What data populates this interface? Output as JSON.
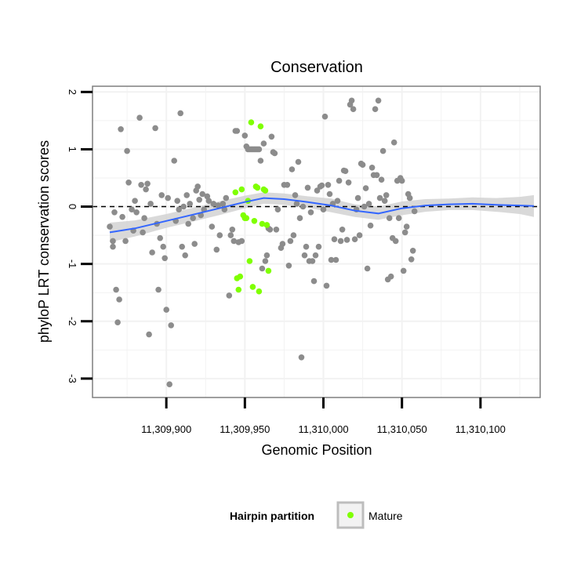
{
  "chart_data": {
    "type": "scatter",
    "title": "Conservation",
    "xlabel": "Genomic Position",
    "ylabel": "phyloP LRT conservation scores",
    "xlim": [
      11309853,
      11310138
    ],
    "ylim": [
      -3.33,
      2.1
    ],
    "x_ticks": [
      11309900,
      11309950,
      11310000,
      11310050,
      11310100
    ],
    "x_tick_labels": [
      "11,309,900",
      "11,309,950",
      "11,310,000",
      "11,310,050",
      "11,310,100"
    ],
    "y_ticks": [
      2,
      1,
      0,
      -1,
      -2,
      -3
    ],
    "y_tick_labels": [
      "2",
      "1",
      "0",
      "-1",
      "-2",
      "-3"
    ],
    "reference_line": {
      "y": 0,
      "style": "dashed"
    },
    "grid": true,
    "colors": {
      "default_point": "#8c8c8c",
      "mature_point": "#7fff00",
      "smooth_line": "#3366ff",
      "confidence_band": "#d2d2d2",
      "grid": "#f2f2f2",
      "panel_border": "#7f7f7f"
    },
    "legend": {
      "title": "Hairpin partition",
      "position": "bottom",
      "entries": [
        {
          "label": "Mature",
          "color": "#7fff00"
        }
      ]
    },
    "series": [
      {
        "name": "",
        "color": "#8c8c8c",
        "points": [
          [
            11309864,
            -0.35
          ],
          [
            11309866,
            -0.7
          ],
          [
            11309866,
            -0.6
          ],
          [
            11309867,
            -0.1
          ],
          [
            11309868,
            -1.45
          ],
          [
            11309869,
            -2.02
          ],
          [
            11309870,
            -1.62
          ],
          [
            11309871,
            1.35
          ],
          [
            11309872,
            -0.18
          ],
          [
            11309874,
            -0.6
          ],
          [
            11309875,
            0.97
          ],
          [
            11309876,
            0.42
          ],
          [
            11309878,
            -0.05
          ],
          [
            11309879,
            -0.42
          ],
          [
            11309880,
            0.1
          ],
          [
            11309881,
            -0.1
          ],
          [
            11309883,
            1.55
          ],
          [
            11309884,
            0.38
          ],
          [
            11309885,
            -0.45
          ],
          [
            11309886,
            -0.2
          ],
          [
            11309887,
            0.3
          ],
          [
            11309888,
            0.4
          ],
          [
            11309889,
            -2.23
          ],
          [
            11309890,
            0.05
          ],
          [
            11309891,
            -0.8
          ],
          [
            11309893,
            1.37
          ],
          [
            11309894,
            -0.3
          ],
          [
            11309895,
            -1.45
          ],
          [
            11309896,
            -0.55
          ],
          [
            11309897,
            0.2
          ],
          [
            11309898,
            -0.7
          ],
          [
            11309899,
            -0.9
          ],
          [
            11309900,
            -1.8
          ],
          [
            11309901,
            0.15
          ],
          [
            11309902,
            -3.1
          ],
          [
            11309903,
            -2.07
          ],
          [
            11309905,
            0.8
          ],
          [
            11309906,
            -0.25
          ],
          [
            11309907,
            0.1
          ],
          [
            11309908,
            -0.05
          ],
          [
            11309909,
            1.63
          ],
          [
            11309910,
            -0.7
          ],
          [
            11309911,
            0.0
          ],
          [
            11309912,
            -0.85
          ],
          [
            11309913,
            0.2
          ],
          [
            11309914,
            -0.3
          ],
          [
            11309915,
            0.05
          ],
          [
            11309917,
            -0.2
          ],
          [
            11309918,
            -0.65
          ],
          [
            11309919,
            0.28
          ],
          [
            11309920,
            0.35
          ],
          [
            11309921,
            0.12
          ],
          [
            11309922,
            -0.15
          ],
          [
            11309923,
            0.22
          ],
          [
            11309924,
            -0.05
          ],
          [
            11309926,
            0.18
          ],
          [
            11309927,
            0.1
          ],
          [
            11309929,
            -0.35
          ],
          [
            11309930,
            0.05
          ],
          [
            11309932,
            -0.75
          ],
          [
            11309933,
            0.02
          ],
          [
            11309934,
            -0.5
          ],
          [
            11309936,
            0.05
          ],
          [
            11309937,
            -0.05
          ],
          [
            11309938,
            0.15
          ],
          [
            11309940,
            -1.55
          ],
          [
            11309941,
            -0.5
          ],
          [
            11309942,
            -0.4
          ],
          [
            11309943,
            -0.6
          ],
          [
            11309944,
            1.32
          ],
          [
            11309945,
            1.32
          ],
          [
            11309946,
            -0.62
          ],
          [
            11309948,
            -0.6
          ],
          [
            11309950,
            1.24
          ],
          [
            11309951,
            1.05
          ],
          [
            11309952,
            1.0
          ],
          [
            11309953,
            1.0
          ],
          [
            11309954,
            1.0
          ],
          [
            11309955,
            1.0
          ],
          [
            11309956,
            1.0
          ],
          [
            11309957,
            1.0
          ],
          [
            11309958,
            1.0
          ],
          [
            11309959,
            1.0
          ],
          [
            11309960,
            0.8
          ],
          [
            11309961,
            -1.08
          ],
          [
            11309962,
            1.1
          ],
          [
            11309963,
            -0.95
          ],
          [
            11309964,
            -0.85
          ],
          [
            11309965,
            -0.38
          ],
          [
            11309966,
            -0.4
          ],
          [
            11309967,
            1.22
          ],
          [
            11309968,
            0.95
          ],
          [
            11309969,
            0.93
          ],
          [
            11309970,
            -0.4
          ],
          [
            11309971,
            -0.05
          ],
          [
            11309973,
            -0.72
          ],
          [
            11309974,
            -0.65
          ],
          [
            11309975,
            0.38
          ],
          [
            11309977,
            0.38
          ],
          [
            11309978,
            -1.03
          ],
          [
            11309979,
            -0.6
          ],
          [
            11309980,
            0.65
          ],
          [
            11309981,
            -0.5
          ],
          [
            11309982,
            0.2
          ],
          [
            11309983,
            0.05
          ],
          [
            11309984,
            0.78
          ],
          [
            11309985,
            -0.2
          ],
          [
            11309986,
            -2.63
          ],
          [
            11309987,
            0.0
          ],
          [
            11309988,
            -0.85
          ],
          [
            11309989,
            -0.7
          ],
          [
            11309990,
            0.33
          ],
          [
            11309991,
            -0.95
          ],
          [
            11309992,
            -0.1
          ],
          [
            11309993,
            -0.95
          ],
          [
            11309994,
            -1.3
          ],
          [
            11309995,
            -0.85
          ],
          [
            11309996,
            0.28
          ],
          [
            11309997,
            -0.7
          ],
          [
            11309998,
            0.35
          ],
          [
            11309999,
            0.37
          ],
          [
            11310000,
            -0.05
          ],
          [
            11310001,
            1.57
          ],
          [
            11310002,
            -1.38
          ],
          [
            11310003,
            0.38
          ],
          [
            11310004,
            0.22
          ],
          [
            11310005,
            -0.93
          ],
          [
            11310006,
            0.05
          ],
          [
            11310007,
            -0.57
          ],
          [
            11310008,
            -0.93
          ],
          [
            11310009,
            0.1
          ],
          [
            11310010,
            0.45
          ],
          [
            11310011,
            -0.6
          ],
          [
            11310012,
            -0.4
          ],
          [
            11310013,
            0.63
          ],
          [
            11310014,
            0.62
          ],
          [
            11310015,
            -0.58
          ],
          [
            11310016,
            0.42
          ],
          [
            11310017,
            1.78
          ],
          [
            11310018,
            1.85
          ],
          [
            11310019,
            1.7
          ],
          [
            11310020,
            -0.57
          ],
          [
            11310021,
            -0.05
          ],
          [
            11310022,
            0.15
          ],
          [
            11310023,
            -0.5
          ],
          [
            11310024,
            0.75
          ],
          [
            11310025,
            0.73
          ],
          [
            11310026,
            0.0
          ],
          [
            11310027,
            0.32
          ],
          [
            11310028,
            -1.08
          ],
          [
            11310029,
            0.05
          ],
          [
            11310030,
            -0.33
          ],
          [
            11310031,
            0.68
          ],
          [
            11310032,
            0.55
          ],
          [
            11310033,
            1.7
          ],
          [
            11310034,
            0.55
          ],
          [
            11310035,
            1.85
          ],
          [
            11310036,
            0.15
          ],
          [
            11310037,
            0.47
          ],
          [
            11310038,
            0.97
          ],
          [
            11310039,
            0.1
          ],
          [
            11310040,
            0.2
          ],
          [
            11310041,
            -1.27
          ],
          [
            11310042,
            -0.2
          ],
          [
            11310043,
            -1.22
          ],
          [
            11310044,
            -0.55
          ],
          [
            11310045,
            1.12
          ],
          [
            11310046,
            -0.6
          ],
          [
            11310047,
            0.45
          ],
          [
            11310048,
            -0.2
          ],
          [
            11310049,
            0.5
          ],
          [
            11310050,
            0.45
          ],
          [
            11310051,
            -1.12
          ],
          [
            11310052,
            -0.45
          ],
          [
            11310053,
            -0.35
          ],
          [
            11310054,
            0.22
          ],
          [
            11310055,
            0.15
          ],
          [
            11310056,
            -0.92
          ],
          [
            11310057,
            -0.77
          ],
          [
            11310058,
            -0.08
          ]
        ]
      },
      {
        "name": "Mature",
        "color": "#7fff00",
        "points": [
          [
            11309944,
            0.25
          ],
          [
            11309945,
            -1.25
          ],
          [
            11309946,
            -1.45
          ],
          [
            11309947,
            -1.22
          ],
          [
            11309948,
            0.3
          ],
          [
            11309949,
            -0.15
          ],
          [
            11309950,
            -0.2
          ],
          [
            11309951,
            -0.2
          ],
          [
            11309952,
            0.1
          ],
          [
            11309953,
            -0.95
          ],
          [
            11309954,
            1.47
          ],
          [
            11309955,
            -1.4
          ],
          [
            11309956,
            -0.25
          ],
          [
            11309957,
            0.35
          ],
          [
            11309958,
            0.33
          ],
          [
            11309959,
            -1.48
          ],
          [
            11309960,
            1.4
          ],
          [
            11309961,
            -0.3
          ],
          [
            11309962,
            0.3
          ],
          [
            11309963,
            0.28
          ],
          [
            11309964,
            -0.32
          ],
          [
            11309965,
            -1.12
          ]
        ]
      }
    ],
    "smooth": {
      "name": "",
      "color": "#3366ff",
      "x": [
        11309864,
        11309880,
        11309900,
        11309920,
        11309935,
        11309950,
        11309962,
        11309975,
        11309990,
        11310005,
        11310020,
        11310035,
        11310050,
        11310065,
        11310080,
        11310095,
        11310110,
        11310125,
        11310134
      ],
      "y": [
        -0.45,
        -0.38,
        -0.25,
        -0.12,
        -0.02,
        0.08,
        0.15,
        0.13,
        0.08,
        0.02,
        -0.07,
        -0.12,
        -0.03,
        0.02,
        0.04,
        0.05,
        0.03,
        0.02,
        0.01
      ],
      "lower": [
        -0.62,
        -0.52,
        -0.37,
        -0.24,
        -0.14,
        -0.03,
        0.05,
        0.03,
        -0.02,
        -0.1,
        -0.18,
        -0.23,
        -0.15,
        -0.09,
        -0.06,
        -0.06,
        -0.09,
        -0.13,
        -0.18
      ],
      "upper": [
        -0.28,
        -0.24,
        -0.13,
        0.0,
        0.1,
        0.19,
        0.25,
        0.23,
        0.18,
        0.14,
        0.04,
        0.0,
        0.09,
        0.13,
        0.14,
        0.16,
        0.15,
        0.17,
        0.2
      ]
    }
  }
}
